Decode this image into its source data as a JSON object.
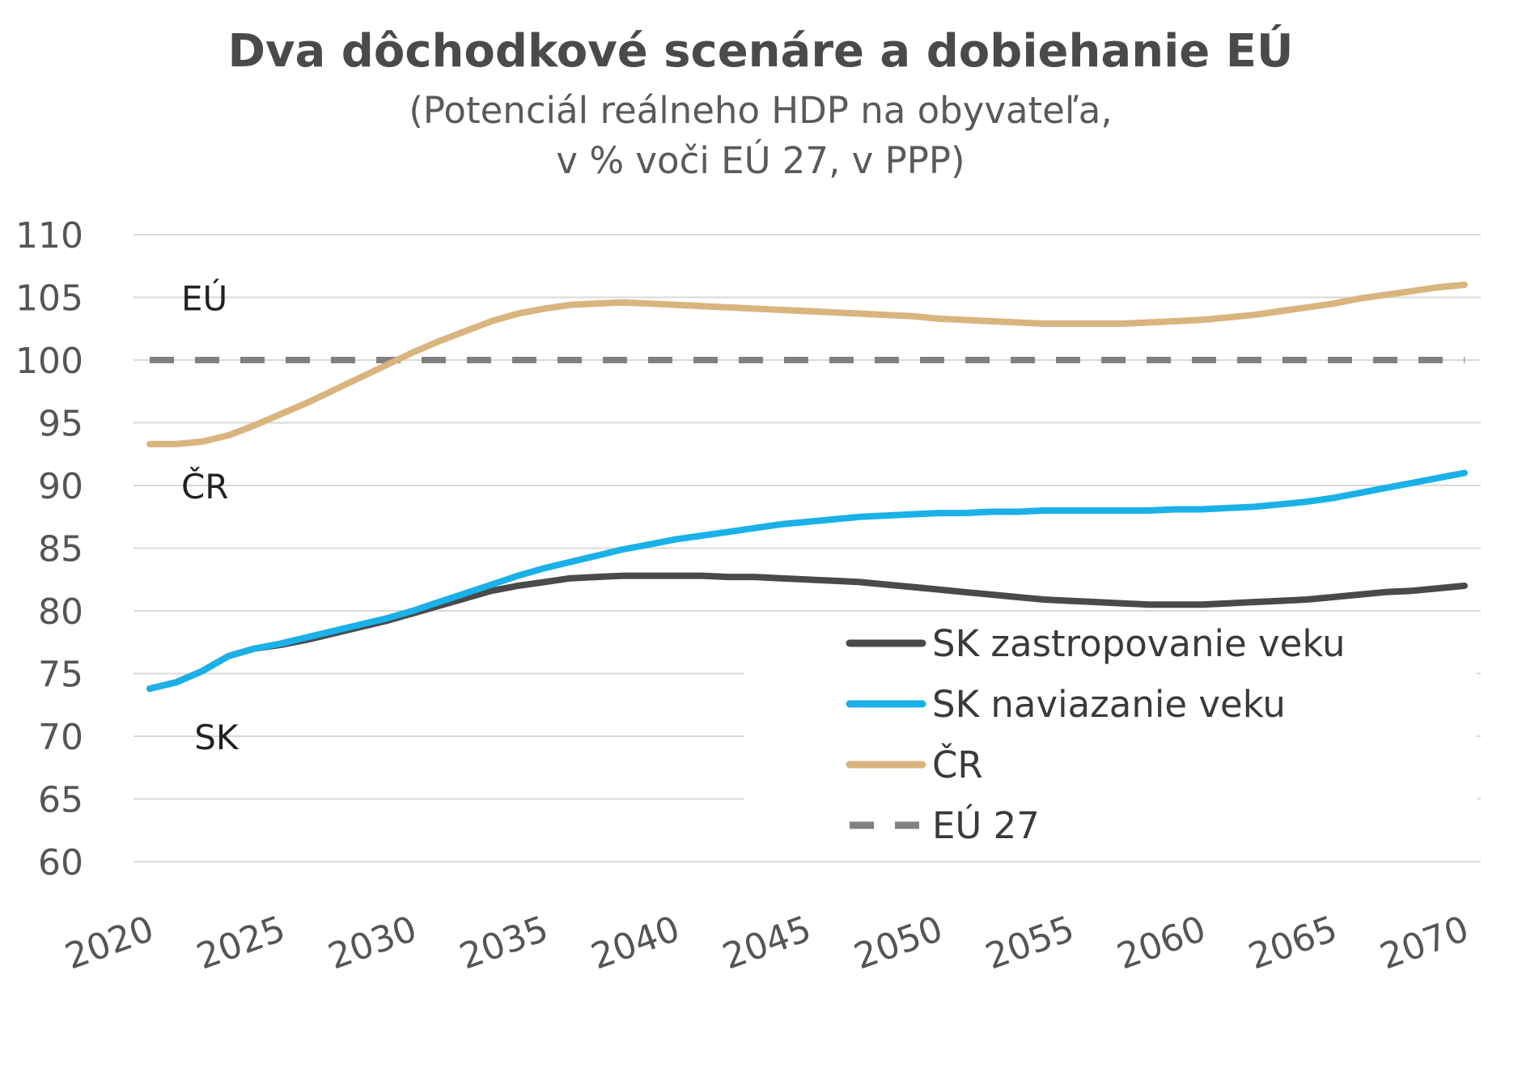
{
  "chart_data": {
    "type": "line",
    "title": "Dva dôchodkové scenáre a dobiehanie EÚ",
    "subtitle_lines": [
      "(Potenciál reálneho HDP na obyvateľa,",
      "v % voči EÚ 27, v PPP)"
    ],
    "ylim": [
      60,
      110
    ],
    "yticks": [
      "110",
      "105",
      "100",
      "95",
      "90",
      "85",
      "80",
      "75",
      "70",
      "65",
      "60"
    ],
    "xlim": [
      2020,
      2070
    ],
    "xticks": [
      "2020",
      "2025",
      "2030",
      "2035",
      "2040",
      "2045",
      "2050",
      "2055",
      "2060",
      "2065",
      "2070"
    ],
    "grid": true,
    "legend_position": "bottom-right",
    "x": [
      2020,
      2021,
      2022,
      2023,
      2024,
      2025,
      2026,
      2027,
      2028,
      2029,
      2030,
      2031,
      2032,
      2033,
      2034,
      2035,
      2036,
      2037,
      2038,
      2039,
      2040,
      2041,
      2042,
      2043,
      2044,
      2045,
      2046,
      2047,
      2048,
      2049,
      2050,
      2051,
      2052,
      2053,
      2054,
      2055,
      2056,
      2057,
      2058,
      2059,
      2060,
      2061,
      2062,
      2063,
      2064,
      2065,
      2066,
      2067,
      2068,
      2069,
      2070
    ],
    "series": [
      {
        "name": "SK zastropovanie veku",
        "color": "#4a4a4a",
        "style": "solid",
        "values": [
          73.8,
          74.3,
          75.2,
          76.4,
          77.0,
          77.3,
          77.7,
          78.2,
          78.7,
          79.2,
          79.8,
          80.4,
          81.0,
          81.6,
          82.0,
          82.3,
          82.6,
          82.7,
          82.8,
          82.8,
          82.8,
          82.8,
          82.7,
          82.7,
          82.6,
          82.5,
          82.4,
          82.3,
          82.1,
          81.9,
          81.7,
          81.5,
          81.3,
          81.1,
          80.9,
          80.8,
          80.7,
          80.6,
          80.5,
          80.5,
          80.5,
          80.6,
          80.7,
          80.8,
          80.9,
          81.1,
          81.3,
          81.5,
          81.6,
          81.8,
          82.0
        ]
      },
      {
        "name": "SK naviazanie veku",
        "color": "#1ab1e8",
        "style": "solid",
        "values": [
          73.8,
          74.3,
          75.2,
          76.4,
          77.0,
          77.4,
          77.9,
          78.4,
          78.9,
          79.4,
          80.0,
          80.7,
          81.4,
          82.1,
          82.8,
          83.4,
          83.9,
          84.4,
          84.9,
          85.3,
          85.7,
          86.0,
          86.3,
          86.6,
          86.9,
          87.1,
          87.3,
          87.5,
          87.6,
          87.7,
          87.8,
          87.8,
          87.9,
          87.9,
          88.0,
          88.0,
          88.0,
          88.0,
          88.0,
          88.1,
          88.1,
          88.2,
          88.3,
          88.5,
          88.7,
          89.0,
          89.4,
          89.8,
          90.2,
          90.6,
          91.0
        ]
      },
      {
        "name": "ČR",
        "color": "#d9b47e",
        "style": "solid",
        "values": [
          93.3,
          93.3,
          93.5,
          94.0,
          94.8,
          95.7,
          96.6,
          97.6,
          98.6,
          99.6,
          100.6,
          101.5,
          102.3,
          103.1,
          103.7,
          104.1,
          104.4,
          104.5,
          104.6,
          104.5,
          104.4,
          104.3,
          104.2,
          104.1,
          104.0,
          103.9,
          103.8,
          103.7,
          103.6,
          103.5,
          103.3,
          103.2,
          103.1,
          103.0,
          102.9,
          102.9,
          102.9,
          102.9,
          103.0,
          103.1,
          103.2,
          103.4,
          103.6,
          103.9,
          104.2,
          104.5,
          104.9,
          105.2,
          105.5,
          105.8,
          106.0
        ]
      },
      {
        "name": "EÚ 27",
        "color": "#808080",
        "style": "dashed",
        "values": [
          100,
          100,
          100,
          100,
          100,
          100,
          100,
          100,
          100,
          100,
          100,
          100,
          100,
          100,
          100,
          100,
          100,
          100,
          100,
          100,
          100,
          100,
          100,
          100,
          100,
          100,
          100,
          100,
          100,
          100,
          100,
          100,
          100,
          100,
          100,
          100,
          100,
          100,
          100,
          100,
          100,
          100,
          100,
          100,
          100,
          100,
          100,
          100,
          100,
          100,
          100
        ]
      }
    ],
    "annotations": [
      {
        "text": "EÚ",
        "x": 2021.2,
        "y": 105
      },
      {
        "text": "ČR",
        "x": 2021.2,
        "y": 90
      },
      {
        "text": "SK",
        "x": 2021.7,
        "y": 70
      }
    ]
  }
}
